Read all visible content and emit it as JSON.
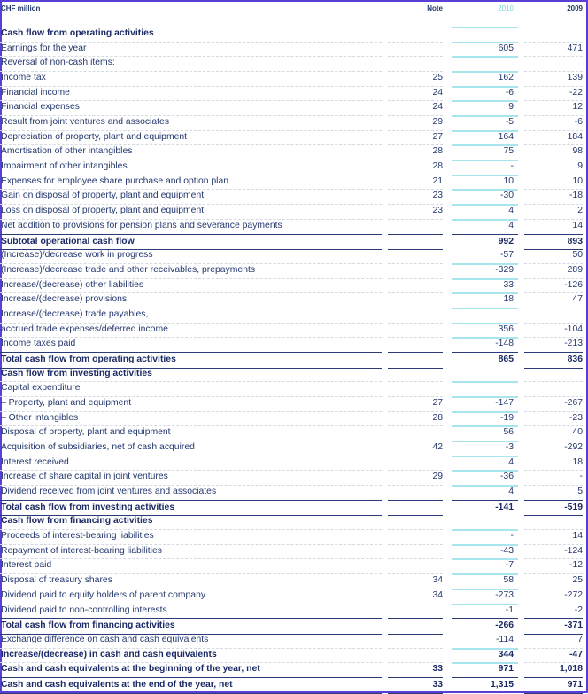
{
  "header": {
    "unit": "CHF million",
    "note": "Note",
    "year_current": "2010",
    "year_prior": "2009"
  },
  "colors": {
    "text": "#24386e",
    "current_year": "#7fd3df",
    "rule": "#2a3b78",
    "border": "#5a3fd6"
  },
  "rows": [
    {
      "label": "Cash flow from operating activities",
      "type": "heading"
    },
    {
      "label": "Earnings for the year",
      "v2010": "605",
      "v2009": "471"
    },
    {
      "label": "Reversal of non-cash items:"
    },
    {
      "label": "Income tax",
      "note": "25",
      "v2010": "162",
      "v2009": "139"
    },
    {
      "label": "Financial income",
      "note": "24",
      "v2010": "-6",
      "v2009": "-22"
    },
    {
      "label": "Financial expenses",
      "note": "24",
      "v2010": "9",
      "v2009": "12"
    },
    {
      "label": "Result from joint ventures and associates",
      "note": "29",
      "v2010": "-5",
      "v2009": "-6"
    },
    {
      "label": "Depreciation of property, plant and equipment",
      "note": "27",
      "v2010": "164",
      "v2009": "184"
    },
    {
      "label": "Amortisation of other intangibles",
      "note": "28",
      "v2010": "75",
      "v2009": "98"
    },
    {
      "label": "Impairment of other intangibles",
      "note": "28",
      "v2010": "-",
      "v2009": "9"
    },
    {
      "label": "Expenses for employee share purchase and option plan",
      "note": "21",
      "v2010": "10",
      "v2009": "10"
    },
    {
      "label": "Gain on disposal of property, plant and equipment",
      "note": "23",
      "v2010": "-30",
      "v2009": "-18"
    },
    {
      "label": "Loss on disposal of property, plant and equipment",
      "note": "23",
      "v2010": "4",
      "v2009": "2"
    },
    {
      "label": "Net addition to provisions for pension plans and severance payments",
      "v2010": "4",
      "v2009": "14"
    },
    {
      "label": "Subtotal operational cash flow",
      "v2010": "992",
      "v2009": "893",
      "type": "total"
    },
    {
      "label": "(Increase)/decrease work in progress",
      "v2010": "-57",
      "v2009": "50"
    },
    {
      "label": "(Increase)/decrease trade and other receivables, prepayments",
      "v2010": "-329",
      "v2009": "289"
    },
    {
      "label": "Increase/(decrease) other liabilities",
      "v2010": "33",
      "v2009": "-126"
    },
    {
      "label": "Increase/(decrease) provisions",
      "v2010": "18",
      "v2009": "47"
    },
    {
      "label": "Increase/(decrease) trade payables,"
    },
    {
      "label": "accrued trade expenses/deferred income",
      "v2010": "356",
      "v2009": "-104"
    },
    {
      "label": "Income taxes paid",
      "v2010": "-148",
      "v2009": "-213"
    },
    {
      "label": "Total cash flow from operating activities",
      "v2010": "865",
      "v2009": "836",
      "type": "total"
    },
    {
      "label": "Cash flow from investing activities",
      "type": "heading"
    },
    {
      "label": "Capital expenditure"
    },
    {
      "label": "– Property, plant and equipment",
      "note": "27",
      "v2010": "-147",
      "v2009": "-267"
    },
    {
      "label": "– Other intangibles",
      "note": "28",
      "v2010": "-19",
      "v2009": "-23"
    },
    {
      "label": "Disposal of property, plant and equipment",
      "v2010": "56",
      "v2009": "40"
    },
    {
      "label": "Acquisition of subsidiaries, net of cash acquired",
      "note": "42",
      "v2010": "-3",
      "v2009": "-292"
    },
    {
      "label": "Interest received",
      "v2010": "4",
      "v2009": "18"
    },
    {
      "label": "Increase of share capital in joint ventures",
      "note": "29",
      "v2010": "-36",
      "v2009": "-"
    },
    {
      "label": "Dividend received from joint ventures and associates",
      "v2010": "4",
      "v2009": "5"
    },
    {
      "label": "Total cash flow from investing activities",
      "v2010": "-141",
      "v2009": "-519",
      "type": "total"
    },
    {
      "label": "Cash flow from financing activities",
      "type": "heading"
    },
    {
      "label": "Proceeds of interest-bearing liabilities",
      "v2010": "-",
      "v2009": "14"
    },
    {
      "label": "Repayment of interest-bearing liabilities",
      "v2010": "-43",
      "v2009": "-124"
    },
    {
      "label": "Interest paid",
      "v2010": "-7",
      "v2009": "-12"
    },
    {
      "label": "Disposal of treasury shares",
      "note": "34",
      "v2010": "58",
      "v2009": "25"
    },
    {
      "label": "Dividend paid to equity holders of parent company",
      "note": "34",
      "v2010": "-273",
      "v2009": "-272"
    },
    {
      "label": "Dividend paid to non-controlling interests",
      "v2010": "-1",
      "v2009": "-2"
    },
    {
      "label": "Total cash flow from financing activities",
      "v2010": "-266",
      "v2009": "-371",
      "type": "total"
    },
    {
      "label": "Exchange difference on cash and cash equivalents",
      "v2010": "-114",
      "v2009": "7"
    },
    {
      "label": "Increase/(decrease) in cash and cash equivalents",
      "v2010": "344",
      "v2009": "-47",
      "type": "bold"
    },
    {
      "label": "Cash and cash equivalents at the beginning of the year, net",
      "note": "33",
      "v2010": "971",
      "v2009": "1,018",
      "type": "bold"
    },
    {
      "label": "Cash and cash equivalents at the end of the year, net",
      "note": "33",
      "v2010": "1,315",
      "v2009": "971",
      "type": "bold-final"
    }
  ]
}
